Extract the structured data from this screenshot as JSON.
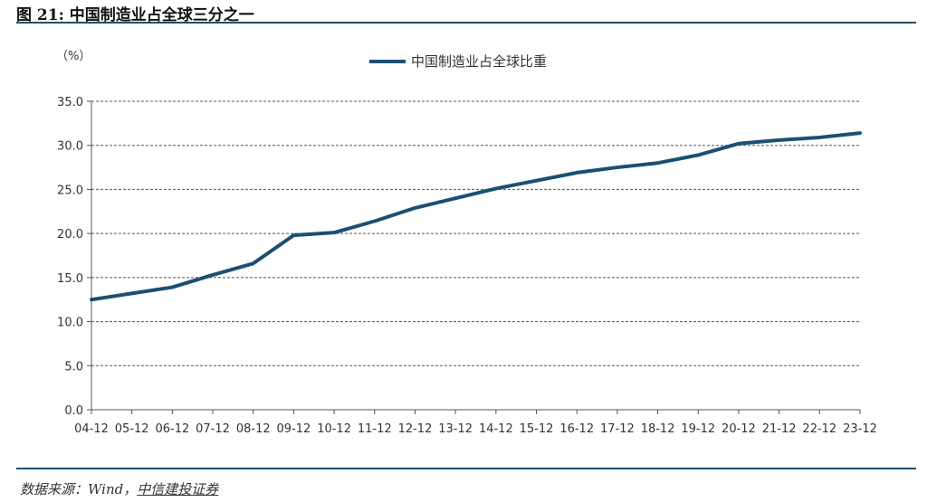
{
  "figure": {
    "title": "图 21: 中国制造业占全球三分之一",
    "source_prefix": "数据来源：Wind，",
    "source_brand": "中信建投证券"
  },
  "chart_data": {
    "type": "line",
    "title": "",
    "unit_label": "（%）",
    "xlabel": "",
    "ylabel": "",
    "categories": [
      "04-12",
      "05-12",
      "06-12",
      "07-12",
      "08-12",
      "09-12",
      "10-12",
      "11-12",
      "12-12",
      "13-12",
      "14-12",
      "15-12",
      "16-12",
      "17-12",
      "18-12",
      "19-12",
      "20-12",
      "21-12",
      "22-12",
      "23-12"
    ],
    "series": [
      {
        "name": "中国制造业占全球比重",
        "color": "#1b4f72",
        "values": [
          12.5,
          13.2,
          13.9,
          15.3,
          16.6,
          19.8,
          20.1,
          21.4,
          22.9,
          24.0,
          25.1,
          26.0,
          26.9,
          27.5,
          28.0,
          28.9,
          30.2,
          30.6,
          30.9,
          31.4
        ]
      }
    ],
    "ylim": [
      0,
      35
    ],
    "yticks": [
      "0.0",
      "5.0",
      "10.0",
      "15.0",
      "20.0",
      "25.0",
      "30.0",
      "35.0"
    ],
    "grid": "horizontal-dashed",
    "legend_position": "top-center"
  }
}
